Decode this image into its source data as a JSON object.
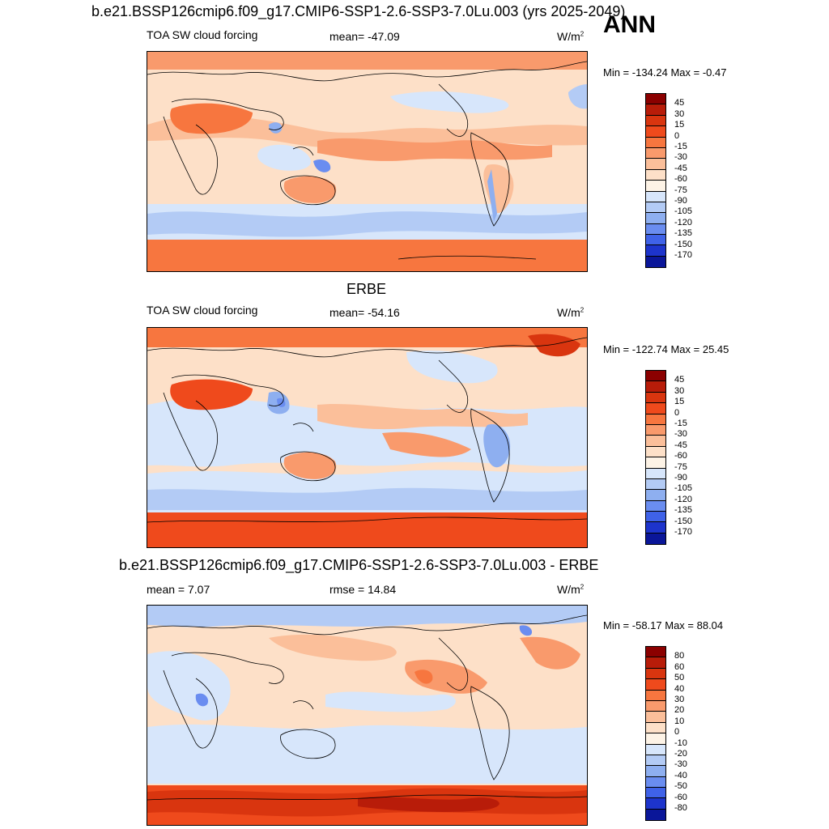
{
  "header": {
    "title": "b.e21.BSSP126cmip6.f09_g17.CMIP6-SSP1-2.6-SSP3-7.0Lu.003 (yrs 2025-2049)",
    "season": "ANN"
  },
  "panels": [
    {
      "id": "model",
      "heading": "",
      "left_label": "TOA SW cloud forcing",
      "center_label": "mean= -47.09",
      "units": "W/m",
      "units_sup": "2",
      "minmax": "Min = -134.24 Max =  -0.47",
      "colorbar": {
        "levels": [
          "45",
          "30",
          "15",
          "0",
          "-15",
          "-30",
          "-45",
          "-60",
          "-75",
          "-90",
          "-105",
          "-120",
          "-135",
          "-150",
          "-170"
        ],
        "colors": [
          "#8b0000",
          "#b81c09",
          "#d9350f",
          "#ef4a1c",
          "#f7763f",
          "#f99a6c",
          "#fbbf9a",
          "#fde0c8",
          "#fdf3e6",
          "#d7e6fb",
          "#b3cbf5",
          "#8eaff0",
          "#6a8df0",
          "#3f62e8",
          "#1d34cc",
          "#0a1699"
        ]
      }
    },
    {
      "id": "obs",
      "heading": "ERBE",
      "left_label": "TOA SW cloud forcing",
      "center_label": "mean= -54.16",
      "units": "W/m",
      "units_sup": "2",
      "minmax": "Min = -122.74 Max =  25.45",
      "colorbar": {
        "levels": [
          "45",
          "30",
          "15",
          "0",
          "-15",
          "-30",
          "-45",
          "-60",
          "-75",
          "-90",
          "-105",
          "-120",
          "-135",
          "-150",
          "-170"
        ],
        "colors": [
          "#8b0000",
          "#b81c09",
          "#d9350f",
          "#ef4a1c",
          "#f7763f",
          "#f99a6c",
          "#fbbf9a",
          "#fde0c8",
          "#fdf3e6",
          "#d7e6fb",
          "#b3cbf5",
          "#8eaff0",
          "#6a8df0",
          "#3f62e8",
          "#1d34cc",
          "#0a1699"
        ]
      }
    },
    {
      "id": "diff",
      "heading": "b.e21.BSSP126cmip6.f09_g17.CMIP6-SSP1-2.6-SSP3-7.0Lu.003 - ERBE",
      "left_label": "mean =   7.07",
      "center_label": "rmse =  14.84",
      "units": "W/m",
      "units_sup": "2",
      "minmax": "Min = -58.17 Max =  88.04",
      "colorbar": {
        "levels": [
          "80",
          "60",
          "50",
          "40",
          "30",
          "20",
          "10",
          "0",
          "-10",
          "-20",
          "-30",
          "-40",
          "-50",
          "-60",
          "-80"
        ],
        "colors": [
          "#8b0000",
          "#b81c09",
          "#d9350f",
          "#ef4a1c",
          "#f7763f",
          "#f99a6c",
          "#fbbf9a",
          "#fde0c8",
          "#fdf3e6",
          "#d7e6fb",
          "#b3cbf5",
          "#8eaff0",
          "#6a8df0",
          "#3f62e8",
          "#1d34cc",
          "#0a1699"
        ]
      }
    }
  ]
}
